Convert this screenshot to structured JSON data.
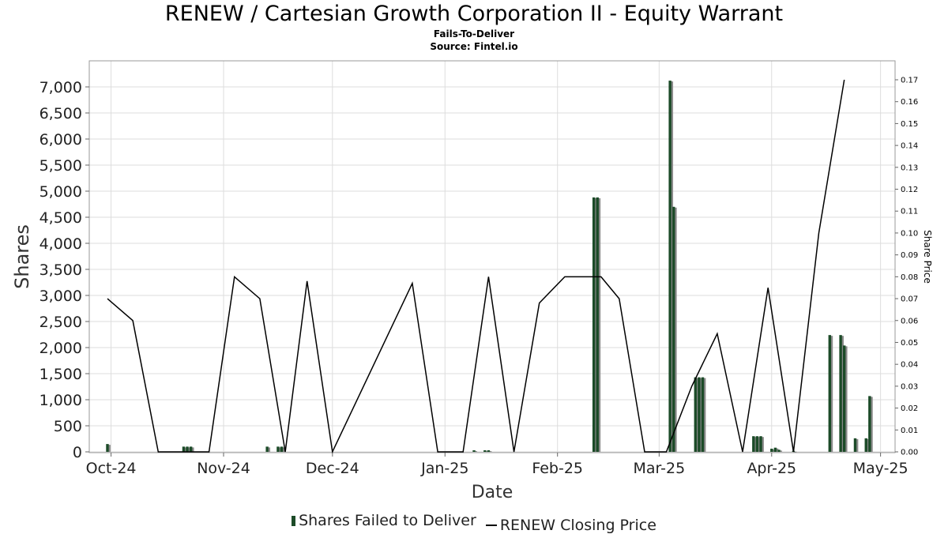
{
  "title": "RENEW / Cartesian Growth Corporation II - Equity Warrant",
  "subtitle": "Fails-To-Deliver",
  "source": "Source: Fintel.io",
  "colors": {
    "bar": "#1c4b28",
    "bar_shadow": "#8a8a8a",
    "line": "#000000",
    "grid": "#dddddd"
  },
  "chart_data": {
    "type": "bar+line",
    "xlabel": "Date",
    "ylabel": "Shares",
    "y2label": "Share Price",
    "ylim": [
      0,
      7400
    ],
    "y2lim": [
      0,
      0.175
    ],
    "x_range": [
      "2024-09-25",
      "2025-05-05"
    ],
    "x_ticks": [
      {
        "date": "2024-10-01",
        "label": "Oct-24"
      },
      {
        "date": "2024-11-01",
        "label": "Nov-24"
      },
      {
        "date": "2024-12-01",
        "label": "Dec-24"
      },
      {
        "date": "2025-01-01",
        "label": "Jan-25"
      },
      {
        "date": "2025-02-01",
        "label": "Feb-25"
      },
      {
        "date": "2025-03-01",
        "label": "Mar-25"
      },
      {
        "date": "2025-04-01",
        "label": "Apr-25"
      },
      {
        "date": "2025-05-01",
        "label": "May-25"
      }
    ],
    "y_ticks": [
      "0",
      "500",
      "1,000",
      "1,500",
      "2,000",
      "2,500",
      "3,000",
      "3,500",
      "4,000",
      "4,500",
      "5,000",
      "5,500",
      "6,000",
      "6,500",
      "7,000"
    ],
    "y_tick_values": [
      0,
      500,
      1000,
      1500,
      2000,
      2500,
      3000,
      3500,
      4000,
      4500,
      5000,
      5500,
      6000,
      6500,
      7000
    ],
    "y2_ticks": [
      "0.00",
      "0.01",
      "0.02",
      "0.03",
      "0.04",
      "0.05",
      "0.06",
      "0.07",
      "0.08",
      "0.09",
      "0.10",
      "0.11",
      "0.12",
      "0.13",
      "0.14",
      "0.15",
      "0.16",
      "0.17"
    ],
    "y2_tick_values": [
      0,
      0.01,
      0.02,
      0.03,
      0.04,
      0.05,
      0.06,
      0.07,
      0.08,
      0.09,
      0.1,
      0.11,
      0.12,
      0.13,
      0.14,
      0.15,
      0.16,
      0.17
    ],
    "series": [
      {
        "name": "Shares Failed to Deliver",
        "type": "bar",
        "points": [
          {
            "date": "2024-09-30",
            "value": 150
          },
          {
            "date": "2024-10-21",
            "value": 100
          },
          {
            "date": "2024-10-22",
            "value": 100
          },
          {
            "date": "2024-10-23",
            "value": 100
          },
          {
            "date": "2024-11-13",
            "value": 100
          },
          {
            "date": "2024-11-16",
            "value": 100
          },
          {
            "date": "2024-11-17",
            "value": 100
          },
          {
            "date": "2025-01-09",
            "value": 30
          },
          {
            "date": "2025-01-12",
            "value": 30
          },
          {
            "date": "2025-01-13",
            "value": 30
          },
          {
            "date": "2025-02-11",
            "value": 4880
          },
          {
            "date": "2025-02-12",
            "value": 4880
          },
          {
            "date": "2025-03-04",
            "value": 7120
          },
          {
            "date": "2025-03-05",
            "value": 4700
          },
          {
            "date": "2025-03-11",
            "value": 1430
          },
          {
            "date": "2025-03-12",
            "value": 1430
          },
          {
            "date": "2025-03-13",
            "value": 1430
          },
          {
            "date": "2025-03-27",
            "value": 300
          },
          {
            "date": "2025-03-28",
            "value": 300
          },
          {
            "date": "2025-03-29",
            "value": 300
          },
          {
            "date": "2025-04-01",
            "value": 60
          },
          {
            "date": "2025-04-02",
            "value": 80
          },
          {
            "date": "2025-04-03",
            "value": 40
          },
          {
            "date": "2025-04-07",
            "value": 20
          },
          {
            "date": "2025-04-17",
            "value": 2240
          },
          {
            "date": "2025-04-20",
            "value": 2240
          },
          {
            "date": "2025-04-21",
            "value": 2040
          },
          {
            "date": "2025-04-24",
            "value": 260
          },
          {
            "date": "2025-04-27",
            "value": 260
          },
          {
            "date": "2025-04-28",
            "value": 1070
          }
        ]
      },
      {
        "name": "RENEW Closing Price",
        "type": "line",
        "points": [
          {
            "date": "2024-09-30",
            "value": 0.07
          },
          {
            "date": "2024-10-07",
            "value": 0.06
          },
          {
            "date": "2024-10-14",
            "value": 0.0
          },
          {
            "date": "2024-10-28",
            "value": 0.0
          },
          {
            "date": "2024-11-04",
            "value": 0.08
          },
          {
            "date": "2024-11-11",
            "value": 0.07
          },
          {
            "date": "2024-11-18",
            "value": 0.0
          },
          {
            "date": "2024-11-24",
            "value": 0.078
          },
          {
            "date": "2024-12-01",
            "value": 0.0
          },
          {
            "date": "2024-12-23",
            "value": 0.077
          },
          {
            "date": "2024-12-30",
            "value": 0.0
          },
          {
            "date": "2025-01-06",
            "value": 0.0
          },
          {
            "date": "2025-01-13",
            "value": 0.08
          },
          {
            "date": "2025-01-20",
            "value": 0.0
          },
          {
            "date": "2025-01-27",
            "value": 0.068
          },
          {
            "date": "2025-02-03",
            "value": 0.08
          },
          {
            "date": "2025-02-13",
            "value": 0.08
          },
          {
            "date": "2025-02-18",
            "value": 0.07
          },
          {
            "date": "2025-02-25",
            "value": 0.0
          },
          {
            "date": "2025-03-03",
            "value": 0.0
          },
          {
            "date": "2025-03-10",
            "value": 0.03
          },
          {
            "date": "2025-03-17",
            "value": 0.054
          },
          {
            "date": "2025-03-24",
            "value": 0.0
          },
          {
            "date": "2025-03-31",
            "value": 0.075
          },
          {
            "date": "2025-04-07",
            "value": 0.0
          },
          {
            "date": "2025-04-14",
            "value": 0.1
          },
          {
            "date": "2025-04-21",
            "value": 0.17
          }
        ]
      }
    ]
  }
}
